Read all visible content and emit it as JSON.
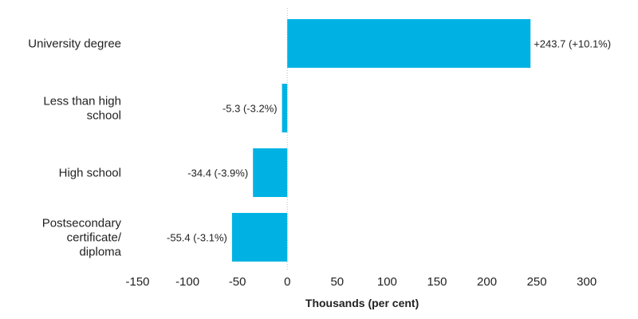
{
  "chart_data": {
    "type": "bar",
    "orientation": "horizontal",
    "categories": [
      [
        "University degree"
      ],
      [
        "Less than high",
        "school"
      ],
      [
        "High school"
      ],
      [
        "Postsecondary",
        "certificate/",
        "diploma"
      ]
    ],
    "values": [
      243.7,
      -5.3,
      -34.4,
      -55.4
    ],
    "data_labels": [
      "+243.7 (+10.1%)",
      "-5.3 (-3.2%)",
      "-34.4 (-3.9%)",
      "-55.4 (-3.1%)"
    ],
    "xlim": [
      -160,
      345
    ],
    "x_ticks": [
      -150,
      -100,
      -50,
      0,
      50,
      100,
      150,
      200,
      250,
      300
    ],
    "x_tick_labels": [
      "-150",
      "-100",
      "-50",
      "0",
      "50",
      "100",
      "150",
      "200",
      "250",
      "300"
    ],
    "xlabel": "Thousands (per cent)",
    "bar_color": "#00b2e3",
    "zero_line": "dotted",
    "grid": false
  }
}
